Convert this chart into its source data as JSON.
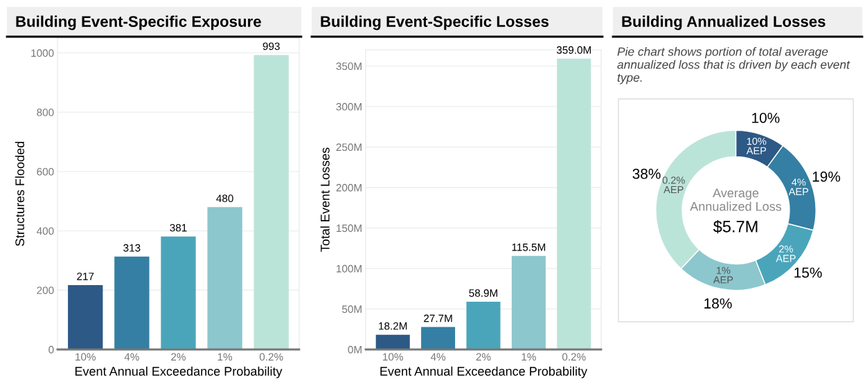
{
  "chart_data": [
    {
      "type": "bar",
      "title": "Building Event-Specific Exposure",
      "xlabel": "Event Annual Exceedance Probability",
      "ylabel": "Structures Flooded",
      "categories": [
        "10%",
        "4%",
        "2%",
        "1%",
        "0.2%"
      ],
      "values": [
        217,
        313,
        381,
        480,
        993
      ],
      "colors": [
        "#2d5986",
        "#347fa3",
        "#4aa5bb",
        "#8cc7cd",
        "#bbe4d9"
      ],
      "ylim": [
        0,
        1050
      ],
      "yticks": [
        0,
        200,
        400,
        600,
        800,
        1000
      ],
      "grid": "y",
      "data_labels": true
    },
    {
      "type": "bar",
      "title": "Building Event-Specific Losses",
      "xlabel": "Event Annual Exceedance Probability",
      "ylabel": "Total Event Losses",
      "categories": [
        "10%",
        "4%",
        "2%",
        "1%",
        "0.2%"
      ],
      "values": [
        18.2,
        27.7,
        58.9,
        115.5,
        359.0
      ],
      "value_labels": [
        "18.2M",
        "27.7M",
        "58.9M",
        "115.5M",
        "359.0M"
      ],
      "colors": [
        "#2d5986",
        "#347fa3",
        "#4aa5bb",
        "#8cc7cd",
        "#bbe4d9"
      ],
      "ylim": [
        0,
        370
      ],
      "yticks": [
        {
          "value": 0,
          "label": "0M"
        },
        {
          "value": 50,
          "label": "50M"
        },
        {
          "value": 100,
          "label": "100M"
        },
        {
          "value": 150,
          "label": "150M"
        },
        {
          "value": 200,
          "label": "200M"
        },
        {
          "value": 250,
          "label": "250M"
        },
        {
          "value": 300,
          "label": "300M"
        },
        {
          "value": 350,
          "label": "350M"
        }
      ],
      "grid": "y"
    },
    {
      "type": "donut",
      "title": "Building Annualized Losses",
      "subtitle": "Pie chart shows portion of total average annualized loss that is driven by each event type.",
      "categories": [
        "10%\nAEP",
        "4%\nAEP",
        "2%\nAEP",
        "1%\nAEP",
        "0.2%\nAEP"
      ],
      "values": [
        10,
        19,
        15,
        18,
        38
      ],
      "value_labels": [
        "10%",
        "19%",
        "15%",
        "18%",
        "38%"
      ],
      "colors": [
        "#2d5986",
        "#347fa3",
        "#4aa5bb",
        "#8cc7cd",
        "#bbe4d9"
      ],
      "annotations": [
        "Average\nAnnualized Loss",
        "$5.7M"
      ]
    }
  ]
}
